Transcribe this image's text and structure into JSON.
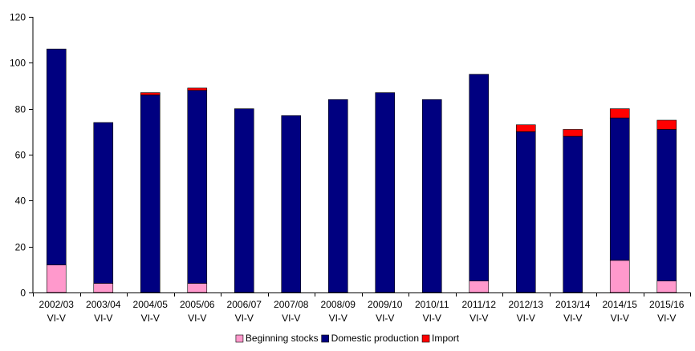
{
  "chart_data": {
    "type": "bar",
    "stacked": true,
    "title": "",
    "xlabel": "",
    "ylabel": "",
    "ylim": [
      0,
      120
    ],
    "yticks": [
      0,
      20,
      40,
      60,
      80,
      100,
      120
    ],
    "grid": false,
    "legend_position": "bottom",
    "categories": [
      [
        "2002/03",
        "VI-V"
      ],
      [
        "2003/04",
        "VI-V"
      ],
      [
        "2004/05",
        "VI-V"
      ],
      [
        "2005/06",
        "VI-V"
      ],
      [
        "2006/07",
        "VI-V"
      ],
      [
        "2007/08",
        "VI-V"
      ],
      [
        "2008/09",
        "VI-V"
      ],
      [
        "2009/10",
        "VI-V"
      ],
      [
        "2010/11",
        "VI-V"
      ],
      [
        "2011/12",
        "VI-V"
      ],
      [
        "2012/13",
        "VI-V"
      ],
      [
        "2013/14",
        "VI-V"
      ],
      [
        "2014/15",
        "VI-V"
      ],
      [
        "2015/16",
        "VI-V"
      ]
    ],
    "series": [
      {
        "name": "Beginning stocks",
        "color": "#ff99cc",
        "values": [
          12,
          4,
          0,
          4,
          0,
          0,
          0,
          0,
          0,
          5,
          0,
          0,
          14,
          5
        ]
      },
      {
        "name": "Domestic production",
        "color": "#000080",
        "values": [
          94,
          70,
          86,
          84,
          80,
          77,
          84,
          87,
          84,
          90,
          70,
          68,
          62,
          66
        ]
      },
      {
        "name": "Import",
        "color": "#ff0000",
        "values": [
          0,
          0,
          1,
          1,
          0,
          0,
          0,
          0,
          0,
          0,
          3,
          3,
          4,
          4
        ]
      }
    ]
  }
}
